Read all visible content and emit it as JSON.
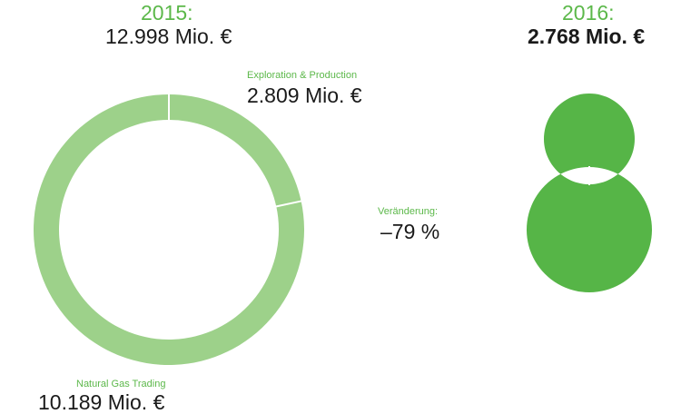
{
  "colors": {
    "light_green": "#9dd18a",
    "dark_green": "#56b547",
    "label_green": "#5cb84a",
    "text": "#1a1a1a",
    "separator": "#ffffff"
  },
  "chart_data": [
    {
      "type": "pie",
      "subtype": "donut",
      "year_label": "2015:",
      "total_label": "12.998 Mio. €",
      "total": 12998,
      "unit": "Mio. €",
      "slices": [
        {
          "name": "Exploration & Production",
          "value": 2809,
          "label": "2.809 Mio. €"
        },
        {
          "name": "Natural Gas Trading",
          "value": 10189,
          "label": "10.189 Mio. €"
        }
      ]
    },
    {
      "type": "pie",
      "subtype": "donut",
      "year_label": "2016:",
      "total_label": "2.768 Mio. €",
      "total": 2768,
      "unit": "Mio. €",
      "slices": [
        {
          "value": 2768
        }
      ]
    }
  ],
  "change": {
    "label": "Veränderung:",
    "value": "–79 %"
  }
}
